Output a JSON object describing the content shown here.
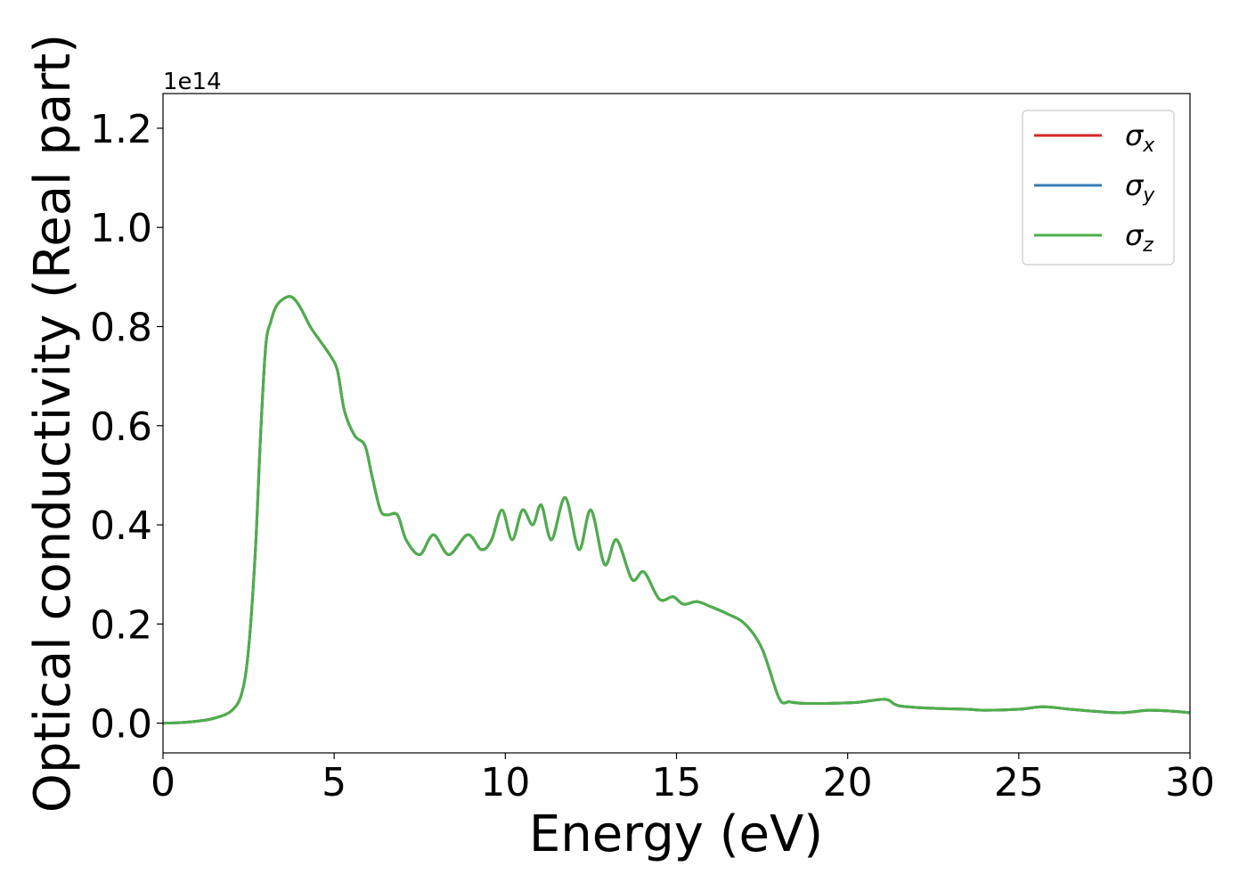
{
  "chart_data": {
    "type": "line",
    "xlabel": "Energy (eV)",
    "ylabel": "Optical conductivity (Real part)",
    "y_offset_label": "1e14",
    "xlim": [
      0,
      30
    ],
    "ylim": [
      -0.06,
      1.27
    ],
    "xticks": [
      0,
      5,
      10,
      15,
      20,
      25,
      30
    ],
    "yticks": [
      0.0,
      0.2,
      0.4,
      0.6,
      0.8,
      1.0,
      1.2
    ],
    "xtick_labels": [
      "0",
      "5",
      "10",
      "15",
      "20",
      "25",
      "30"
    ],
    "ytick_labels": [
      "0.0",
      "0.2",
      "0.4",
      "0.6",
      "0.8",
      "1.0",
      "1.2"
    ],
    "grid": false,
    "legend_position": "top-right",
    "series": [
      {
        "name": "σx",
        "symbol": "σ",
        "subscript": "x",
        "color": "#d62728",
        "x": [
          0,
          0.5,
          1.0,
          1.5,
          2.0,
          2.3,
          2.5,
          2.7,
          2.85,
          3.0,
          3.15,
          3.3,
          3.5,
          3.75,
          4.0,
          4.3,
          4.6,
          4.9,
          5.1,
          5.3,
          5.6,
          5.9,
          6.1,
          6.35,
          6.55,
          6.85,
          7.1,
          7.5,
          7.9,
          8.35,
          8.9,
          9.3,
          9.6,
          9.9,
          10.2,
          10.5,
          10.8,
          11.05,
          11.35,
          11.75,
          12.15,
          12.5,
          12.9,
          13.25,
          13.7,
          14.05,
          14.5,
          14.9,
          15.2,
          15.6,
          16.0,
          16.5,
          17.0,
          17.5,
          18.0,
          18.3,
          18.7,
          19.5,
          20.3,
          21.1,
          21.5,
          22.5,
          23.5,
          24.0,
          25.0,
          25.7,
          26.5,
          27.2,
          28.0,
          28.8,
          29.5,
          30.0
        ],
        "y": [
          0.0,
          0.001,
          0.004,
          0.01,
          0.025,
          0.06,
          0.15,
          0.35,
          0.58,
          0.76,
          0.81,
          0.84,
          0.855,
          0.86,
          0.84,
          0.8,
          0.77,
          0.74,
          0.71,
          0.63,
          0.58,
          0.56,
          0.5,
          0.43,
          0.42,
          0.42,
          0.37,
          0.34,
          0.38,
          0.34,
          0.38,
          0.35,
          0.37,
          0.43,
          0.37,
          0.43,
          0.4,
          0.44,
          0.37,
          0.455,
          0.35,
          0.43,
          0.32,
          0.37,
          0.29,
          0.305,
          0.25,
          0.255,
          0.24,
          0.245,
          0.235,
          0.22,
          0.2,
          0.15,
          0.05,
          0.043,
          0.04,
          0.04,
          0.042,
          0.048,
          0.035,
          0.03,
          0.028,
          0.026,
          0.028,
          0.033,
          0.028,
          0.024,
          0.021,
          0.026,
          0.024,
          0.021
        ]
      },
      {
        "name": "σy",
        "symbol": "σ",
        "subscript": "y",
        "color": "#377eb8",
        "x": [
          0,
          0.5,
          1.0,
          1.5,
          2.0,
          2.3,
          2.5,
          2.7,
          2.85,
          3.0,
          3.15,
          3.3,
          3.5,
          3.75,
          4.0,
          4.3,
          4.6,
          4.9,
          5.1,
          5.3,
          5.6,
          5.9,
          6.1,
          6.35,
          6.55,
          6.85,
          7.1,
          7.5,
          7.9,
          8.35,
          8.9,
          9.3,
          9.6,
          9.9,
          10.2,
          10.5,
          10.8,
          11.05,
          11.35,
          11.75,
          12.15,
          12.5,
          12.9,
          13.25,
          13.7,
          14.05,
          14.5,
          14.9,
          15.2,
          15.6,
          16.0,
          16.5,
          17.0,
          17.5,
          18.0,
          18.3,
          18.7,
          19.5,
          20.3,
          21.1,
          21.5,
          22.5,
          23.5,
          24.0,
          25.0,
          25.7,
          26.5,
          27.2,
          28.0,
          28.8,
          29.5,
          30.0
        ],
        "y": [
          0.0,
          0.001,
          0.004,
          0.01,
          0.025,
          0.06,
          0.15,
          0.35,
          0.58,
          0.76,
          0.81,
          0.84,
          0.855,
          0.86,
          0.84,
          0.8,
          0.77,
          0.74,
          0.71,
          0.63,
          0.58,
          0.56,
          0.5,
          0.43,
          0.42,
          0.42,
          0.37,
          0.34,
          0.38,
          0.34,
          0.38,
          0.35,
          0.37,
          0.43,
          0.37,
          0.43,
          0.4,
          0.44,
          0.37,
          0.455,
          0.35,
          0.43,
          0.32,
          0.37,
          0.29,
          0.305,
          0.25,
          0.255,
          0.24,
          0.245,
          0.235,
          0.22,
          0.2,
          0.15,
          0.05,
          0.043,
          0.04,
          0.04,
          0.042,
          0.048,
          0.035,
          0.03,
          0.028,
          0.026,
          0.028,
          0.033,
          0.028,
          0.024,
          0.021,
          0.026,
          0.024,
          0.021
        ]
      },
      {
        "name": "σz",
        "symbol": "σ",
        "subscript": "z",
        "color": "#4daf4a",
        "x": [
          0,
          0.5,
          1.0,
          1.5,
          2.0,
          2.3,
          2.5,
          2.7,
          2.85,
          3.0,
          3.15,
          3.3,
          3.5,
          3.75,
          4.0,
          4.3,
          4.6,
          4.9,
          5.1,
          5.3,
          5.6,
          5.9,
          6.1,
          6.35,
          6.55,
          6.85,
          7.1,
          7.5,
          7.9,
          8.35,
          8.9,
          9.3,
          9.6,
          9.9,
          10.2,
          10.5,
          10.8,
          11.05,
          11.35,
          11.75,
          12.15,
          12.5,
          12.9,
          13.25,
          13.7,
          14.05,
          14.5,
          14.9,
          15.2,
          15.6,
          16.0,
          16.5,
          17.0,
          17.5,
          18.0,
          18.3,
          18.7,
          19.5,
          20.3,
          21.1,
          21.5,
          22.5,
          23.5,
          24.0,
          25.0,
          25.7,
          26.5,
          27.2,
          28.0,
          28.8,
          29.5,
          30.0
        ],
        "y": [
          0.0,
          0.001,
          0.004,
          0.01,
          0.025,
          0.06,
          0.15,
          0.35,
          0.58,
          0.76,
          0.81,
          0.84,
          0.855,
          0.86,
          0.84,
          0.8,
          0.77,
          0.74,
          0.71,
          0.63,
          0.58,
          0.56,
          0.5,
          0.43,
          0.42,
          0.42,
          0.37,
          0.34,
          0.38,
          0.34,
          0.38,
          0.35,
          0.37,
          0.43,
          0.37,
          0.43,
          0.4,
          0.44,
          0.37,
          0.455,
          0.35,
          0.43,
          0.32,
          0.37,
          0.29,
          0.305,
          0.25,
          0.255,
          0.24,
          0.245,
          0.235,
          0.22,
          0.2,
          0.15,
          0.05,
          0.043,
          0.04,
          0.04,
          0.042,
          0.048,
          0.035,
          0.03,
          0.028,
          0.026,
          0.028,
          0.033,
          0.028,
          0.024,
          0.021,
          0.026,
          0.024,
          0.021
        ]
      }
    ]
  }
}
